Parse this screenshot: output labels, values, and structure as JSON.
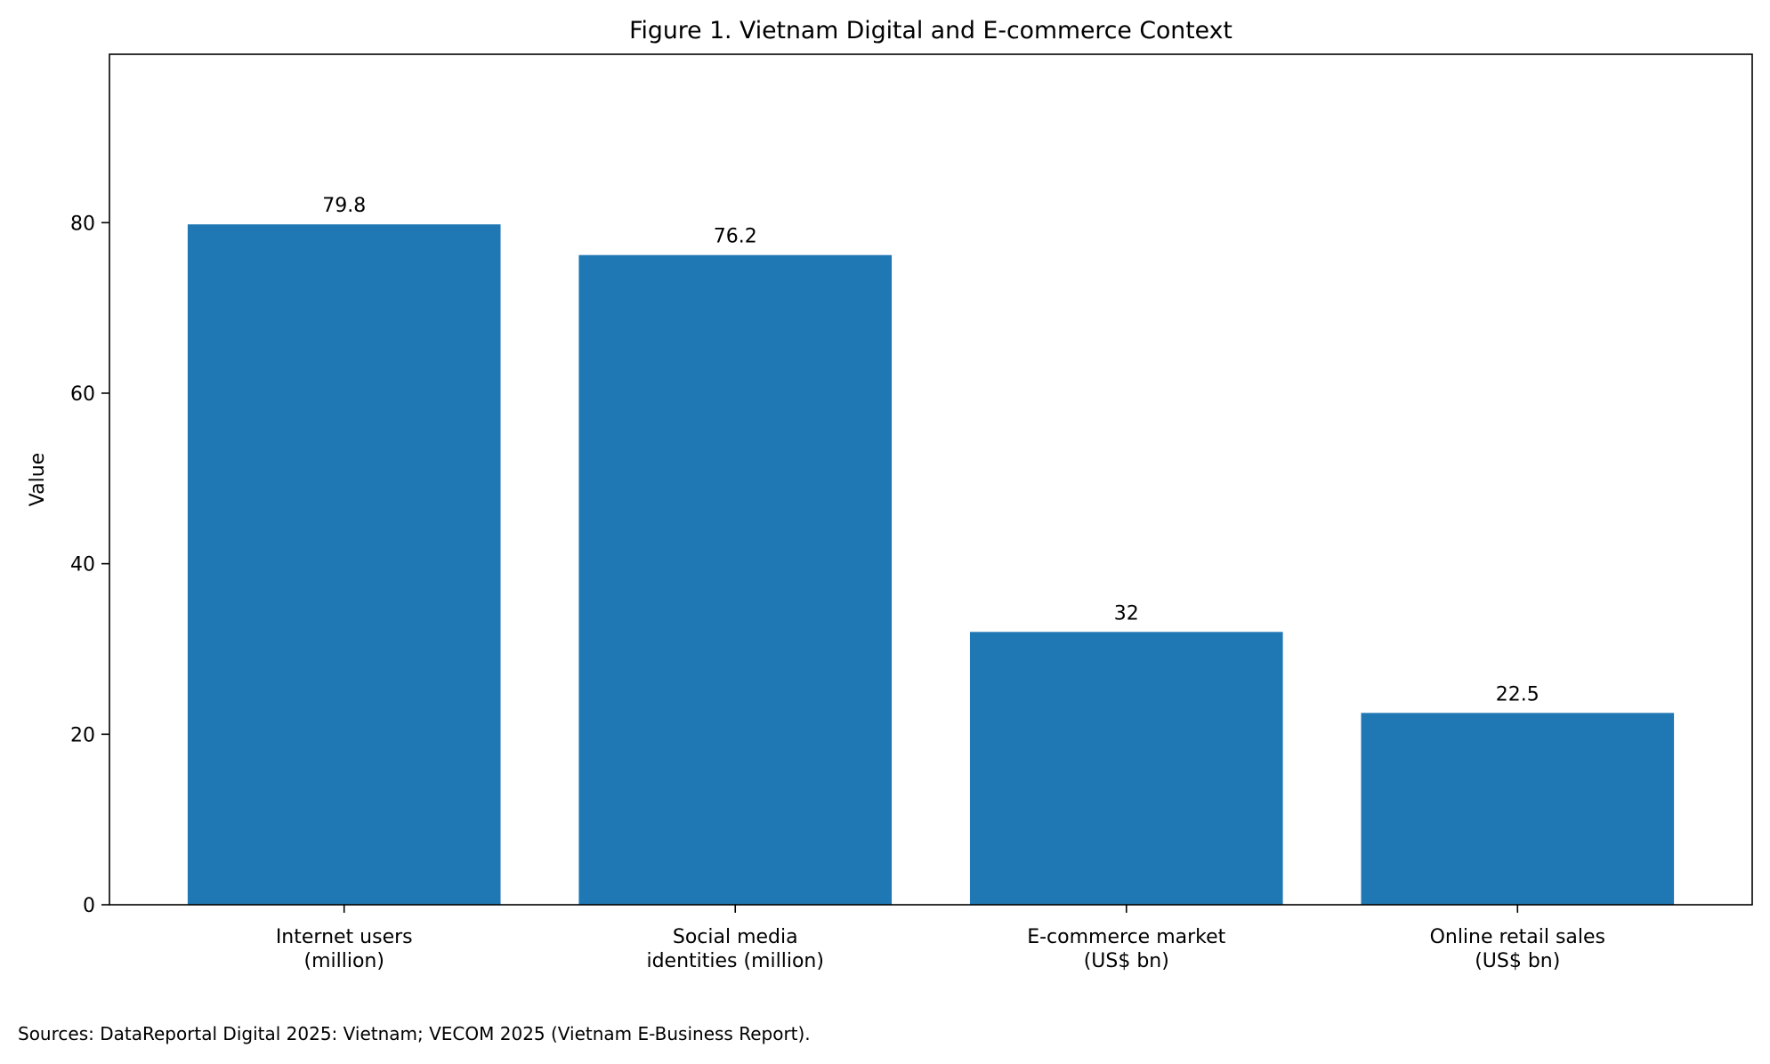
{
  "chart_data": {
    "type": "bar",
    "title": "Figure 1. Vietnam Digital and E-commerce Context",
    "xlabel": "",
    "ylabel": "Value",
    "categories": [
      [
        "Internet users",
        "(million)"
      ],
      [
        "Social media",
        "identities (million)"
      ],
      [
        "E-commerce market",
        "(US$ bn)"
      ],
      [
        "Online retail sales",
        "(US$ bn)"
      ]
    ],
    "values": [
      79.8,
      76.2,
      32,
      22.5
    ],
    "data_labels": [
      "79.8",
      "76.2",
      "32",
      "22.5"
    ],
    "ylim": [
      0,
      99.75
    ],
    "yticks": [
      0,
      20,
      40,
      60,
      80
    ],
    "grid": false,
    "bar_color": "#1f77b4",
    "footnote": "Sources: DataReportal Digital 2025: Vietnam; VECOM 2025 (Vietnam E-Business Report)."
  }
}
